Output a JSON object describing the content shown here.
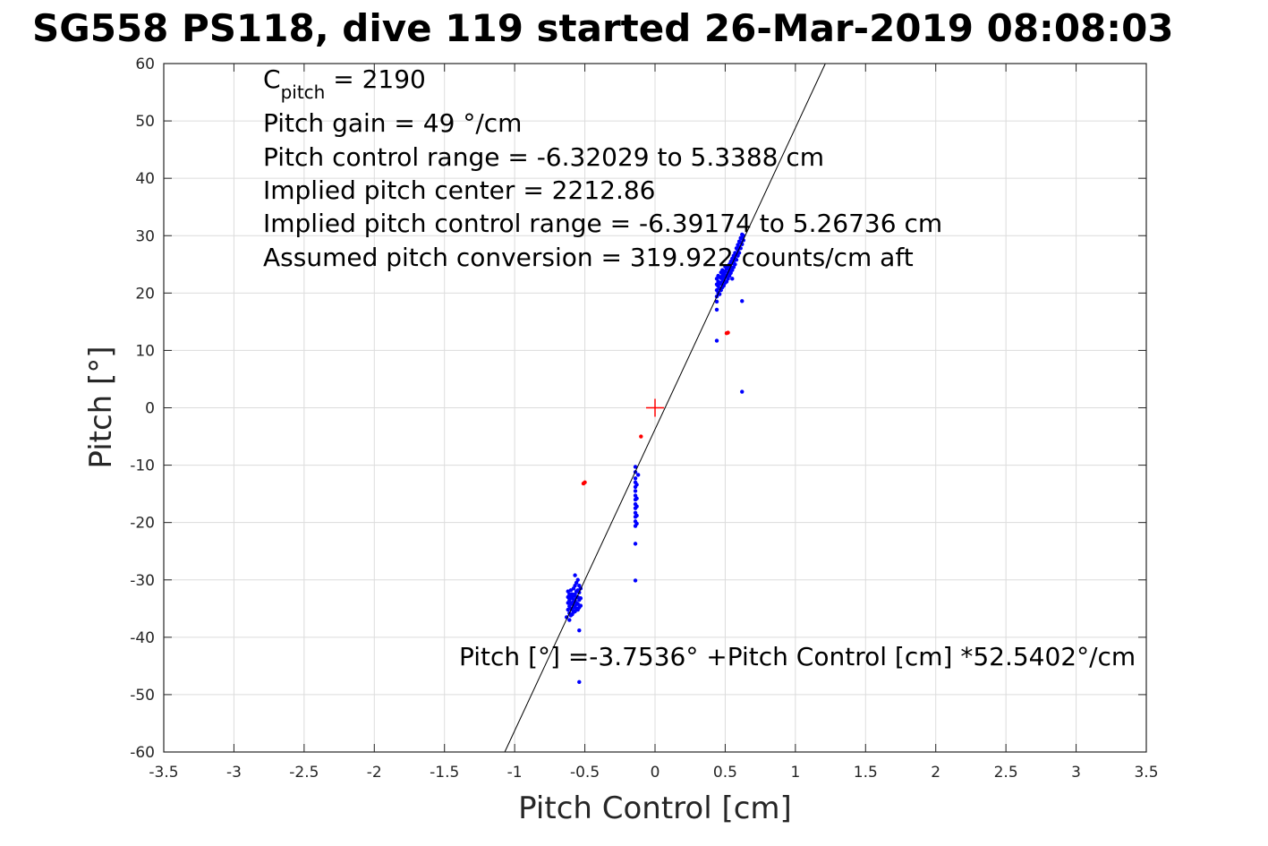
{
  "chart_data": {
    "type": "scatter",
    "title": "SG558 PS118, dive 119 started 26-Mar-2019 08:08:03",
    "xlabel": "Pitch Control [cm]",
    "ylabel": "Pitch [°]",
    "xlim": [
      -3.5,
      3.5
    ],
    "ylim": [
      -60,
      60
    ],
    "xticks": [
      -3.5,
      -3,
      -2.5,
      -2,
      -1.5,
      -1,
      -0.5,
      0,
      0.5,
      1,
      1.5,
      2,
      2.5,
      3,
      3.5
    ],
    "yticks": [
      -60,
      -50,
      -40,
      -30,
      -20,
      -10,
      0,
      10,
      20,
      30,
      40,
      50,
      60
    ],
    "xtick_labels": [
      "-3.5",
      "-3",
      "-2.5",
      "-2",
      "-1.5",
      "-1",
      "-0.5",
      "0",
      "0.5",
      "1",
      "1.5",
      "2",
      "2.5",
      "3",
      "3.5"
    ],
    "ytick_labels": [
      "-60",
      "-50",
      "-40",
      "-30",
      "-20",
      "-10",
      "0",
      "10",
      "20",
      "30",
      "40",
      "50",
      "60"
    ],
    "grid": true,
    "annotations": {
      "c_pitch_main": "C",
      "c_pitch_sub": "pitch",
      "c_pitch_value": " = 2190",
      "pitch_gain": "Pitch gain = 49 °/cm",
      "control_range": "Pitch control range = -6.32029 to 5.3388 cm",
      "implied_center": "Implied pitch center = 2212.86",
      "implied_range": "Implied pitch control range = -6.39174 to 5.26736 cm",
      "conversion": "Assumed pitch conversion = 319.922 counts/cm aft",
      "fit_equation": "Pitch [°] =-3.7536° +Pitch Control [cm] *52.5402°/cm"
    },
    "fit_line": {
      "intercept": -3.7536,
      "slope": 52.5402,
      "color": "#000000"
    },
    "center_marker": {
      "x": 0,
      "y": 0,
      "color": "#ff0000"
    },
    "series": [
      {
        "color": "#0000ff",
        "points": [
          [
            -0.63,
            -36.5
          ],
          [
            -0.62,
            -35.2
          ],
          [
            -0.62,
            -34.0
          ],
          [
            -0.62,
            -33.0
          ],
          [
            -0.62,
            -32.0
          ],
          [
            -0.61,
            -37.0
          ],
          [
            -0.61,
            -35.8
          ],
          [
            -0.61,
            -34.6
          ],
          [
            -0.61,
            -33.5
          ],
          [
            -0.61,
            -32.5
          ],
          [
            -0.6,
            -36.2
          ],
          [
            -0.6,
            -35.0
          ],
          [
            -0.6,
            -34.0
          ],
          [
            -0.6,
            -33.0
          ],
          [
            -0.6,
            -31.8
          ],
          [
            -0.59,
            -36.0
          ],
          [
            -0.59,
            -35.2
          ],
          [
            -0.59,
            -34.2
          ],
          [
            -0.59,
            -33.2
          ],
          [
            -0.59,
            -32.5
          ],
          [
            -0.58,
            -35.6
          ],
          [
            -0.58,
            -34.8
          ],
          [
            -0.58,
            -33.8
          ],
          [
            -0.58,
            -32.8
          ],
          [
            -0.58,
            -31.5
          ],
          [
            -0.57,
            -35.5
          ],
          [
            -0.57,
            -34.5
          ],
          [
            -0.57,
            -33.5
          ],
          [
            -0.57,
            -32.5
          ],
          [
            -0.57,
            -31.0
          ],
          [
            -0.57,
            -29.2
          ],
          [
            -0.56,
            -35.0
          ],
          [
            -0.56,
            -34.0
          ],
          [
            -0.56,
            -33.0
          ],
          [
            -0.56,
            -32.0
          ],
          [
            -0.56,
            -30.5
          ],
          [
            -0.55,
            -35.2
          ],
          [
            -0.55,
            -34.2
          ],
          [
            -0.55,
            -33.0
          ],
          [
            -0.55,
            -31.8
          ],
          [
            -0.55,
            -30.0
          ],
          [
            -0.54,
            -34.8
          ],
          [
            -0.54,
            -33.5
          ],
          [
            -0.54,
            -32.2
          ],
          [
            -0.54,
            -31.0
          ],
          [
            -0.54,
            -38.8
          ],
          [
            -0.54,
            -47.8
          ],
          [
            -0.53,
            -34.5
          ],
          [
            -0.53,
            -33.2
          ],
          [
            -0.53,
            -31.5
          ],
          [
            -0.14,
            -10.3
          ],
          [
            -0.14,
            -11.2
          ],
          [
            -0.14,
            -12.3
          ],
          [
            -0.14,
            -13.0
          ],
          [
            -0.14,
            -13.8
          ],
          [
            -0.14,
            -14.5
          ],
          [
            -0.14,
            -15.3
          ],
          [
            -0.14,
            -16.0
          ],
          [
            -0.14,
            -16.8
          ],
          [
            -0.14,
            -17.5
          ],
          [
            -0.14,
            -18.3
          ],
          [
            -0.14,
            -19.0
          ],
          [
            -0.14,
            -19.8
          ],
          [
            -0.14,
            -20.6
          ],
          [
            -0.14,
            -23.7
          ],
          [
            -0.14,
            -30.1
          ],
          [
            -0.12,
            -11.7
          ],
          [
            -0.13,
            -13.4
          ],
          [
            -0.13,
            -15.8
          ],
          [
            -0.13,
            -17.2
          ],
          [
            -0.13,
            -18.8
          ],
          [
            -0.13,
            -20.2
          ],
          [
            0.44,
            11.7
          ],
          [
            0.44,
            17.1
          ],
          [
            0.44,
            18.5
          ],
          [
            0.44,
            19.4
          ],
          [
            0.44,
            20.5
          ],
          [
            0.44,
            21.5
          ],
          [
            0.44,
            22.5
          ],
          [
            0.45,
            20.0
          ],
          [
            0.45,
            21.2
          ],
          [
            0.45,
            22.0
          ],
          [
            0.45,
            23.0
          ],
          [
            0.46,
            19.8
          ],
          [
            0.46,
            20.8
          ],
          [
            0.46,
            21.8
          ],
          [
            0.46,
            22.8
          ],
          [
            0.47,
            20.5
          ],
          [
            0.47,
            21.6
          ],
          [
            0.47,
            22.6
          ],
          [
            0.47,
            23.6
          ],
          [
            0.48,
            21.0
          ],
          [
            0.48,
            22.0
          ],
          [
            0.48,
            23.0
          ],
          [
            0.48,
            24.0
          ],
          [
            0.49,
            21.3
          ],
          [
            0.49,
            22.4
          ],
          [
            0.49,
            23.4
          ],
          [
            0.5,
            21.8
          ],
          [
            0.5,
            22.8
          ],
          [
            0.5,
            23.8
          ],
          [
            0.5,
            24.6
          ],
          [
            0.51,
            22.0
          ],
          [
            0.51,
            23.1
          ],
          [
            0.51,
            24.2
          ],
          [
            0.52,
            22.5
          ],
          [
            0.52,
            23.5
          ],
          [
            0.52,
            24.5
          ],
          [
            0.53,
            23.0
          ],
          [
            0.53,
            24.0
          ],
          [
            0.53,
            25.0
          ],
          [
            0.54,
            23.5
          ],
          [
            0.54,
            24.5
          ],
          [
            0.54,
            25.5
          ],
          [
            0.55,
            22.5
          ],
          [
            0.55,
            24.0
          ],
          [
            0.55,
            25.2
          ],
          [
            0.55,
            26.0
          ],
          [
            0.56,
            24.5
          ],
          [
            0.56,
            25.5
          ],
          [
            0.56,
            26.5
          ],
          [
            0.57,
            25.0
          ],
          [
            0.57,
            26.0
          ],
          [
            0.57,
            27.0
          ],
          [
            0.58,
            25.8
          ],
          [
            0.58,
            26.8
          ],
          [
            0.58,
            27.8
          ],
          [
            0.59,
            26.5
          ],
          [
            0.59,
            27.5
          ],
          [
            0.59,
            28.4
          ],
          [
            0.6,
            27.0
          ],
          [
            0.6,
            28.0
          ],
          [
            0.6,
            29.0
          ],
          [
            0.61,
            27.8
          ],
          [
            0.61,
            28.8
          ],
          [
            0.61,
            29.6
          ],
          [
            0.62,
            28.5
          ],
          [
            0.62,
            29.5
          ],
          [
            0.62,
            30.2
          ],
          [
            0.63,
            29.2
          ],
          [
            0.63,
            30.0
          ],
          [
            0.62,
            18.6
          ],
          [
            0.62,
            2.8
          ]
        ]
      },
      {
        "color": "#ff0000",
        "points": [
          [
            -0.51,
            -13.2
          ],
          [
            -0.5,
            -13.0
          ],
          [
            -0.1,
            -5.0
          ],
          [
            0.51,
            13.0
          ],
          [
            0.52,
            13.1
          ]
        ]
      }
    ]
  }
}
